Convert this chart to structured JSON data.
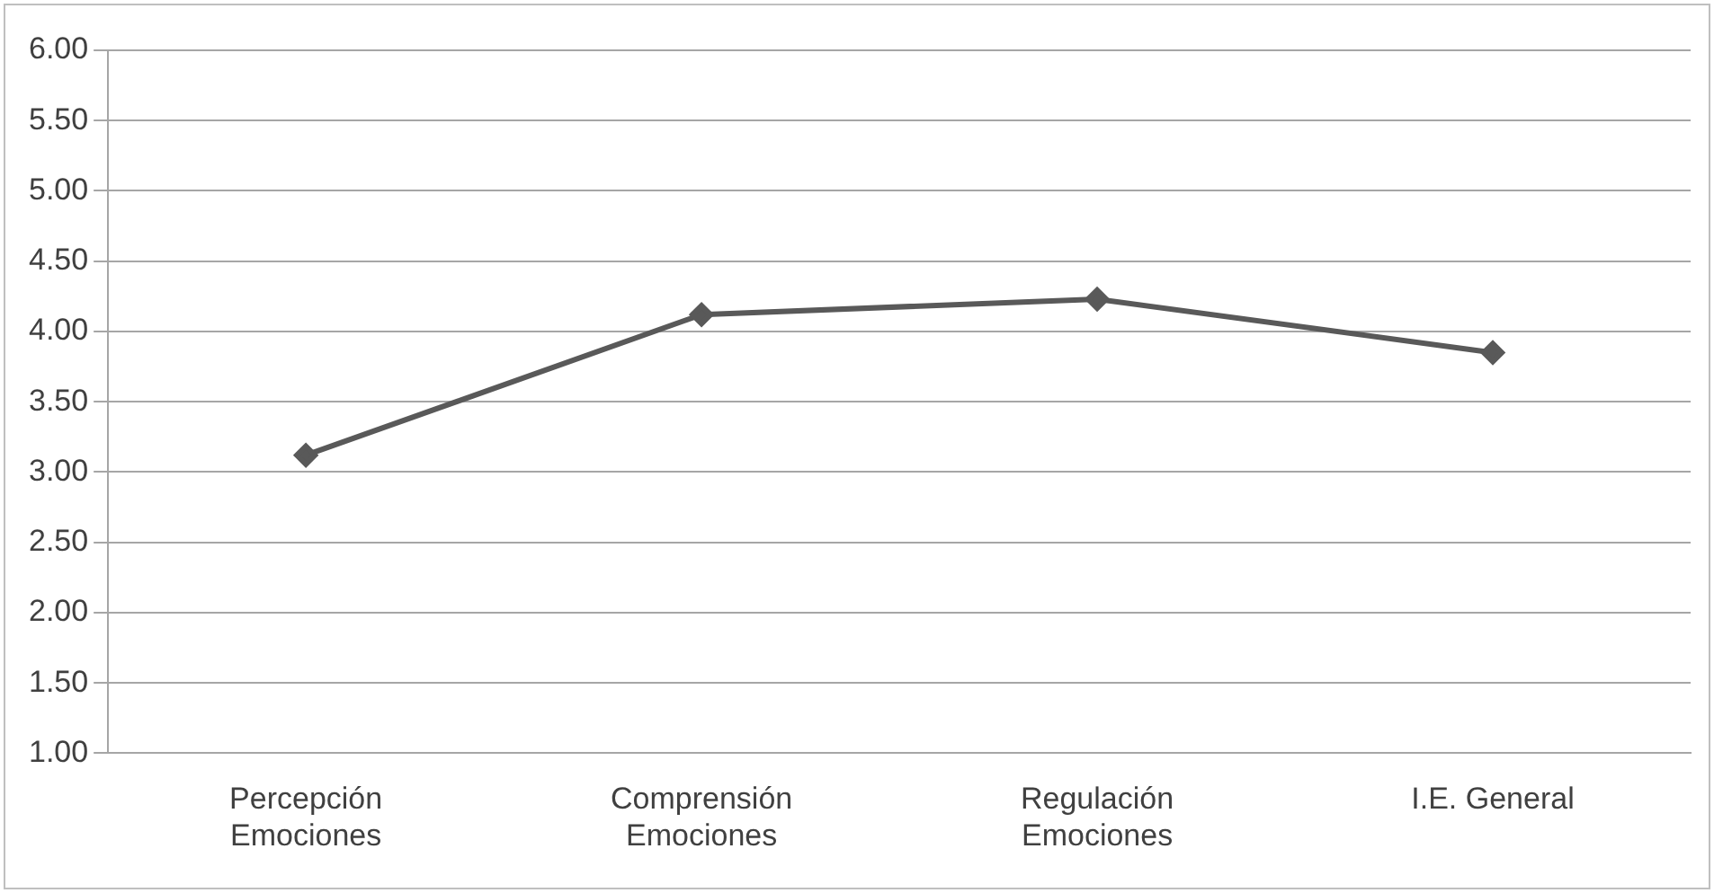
{
  "chart_data": {
    "type": "line",
    "categories": [
      "Percepción\nEmociones",
      "Comprensión\nEmociones",
      "Regulación\nEmociones",
      "I.E. General"
    ],
    "series": [
      {
        "color": "#595959",
        "values": [
          3.12,
          4.12,
          4.23,
          3.85
        ]
      }
    ],
    "ylim": [
      1,
      6
    ],
    "yticks": [
      {
        "value": 1,
        "label": "1.00"
      },
      {
        "value": 1.5,
        "label": "1.50"
      },
      {
        "value": 2,
        "label": "2.00"
      },
      {
        "value": 2.5,
        "label": "2.50"
      },
      {
        "value": 3,
        "label": "3.00"
      },
      {
        "value": 3.5,
        "label": "3.50"
      },
      {
        "value": 4,
        "label": "4.00"
      },
      {
        "value": 4.5,
        "label": "4.50"
      },
      {
        "value": 5,
        "label": "5.00"
      },
      {
        "value": 5.5,
        "label": "5.50"
      },
      {
        "value": 6,
        "label": "6.00"
      }
    ],
    "grid": "y",
    "legend": false,
    "marker": "diamond",
    "line_style": "solid"
  }
}
